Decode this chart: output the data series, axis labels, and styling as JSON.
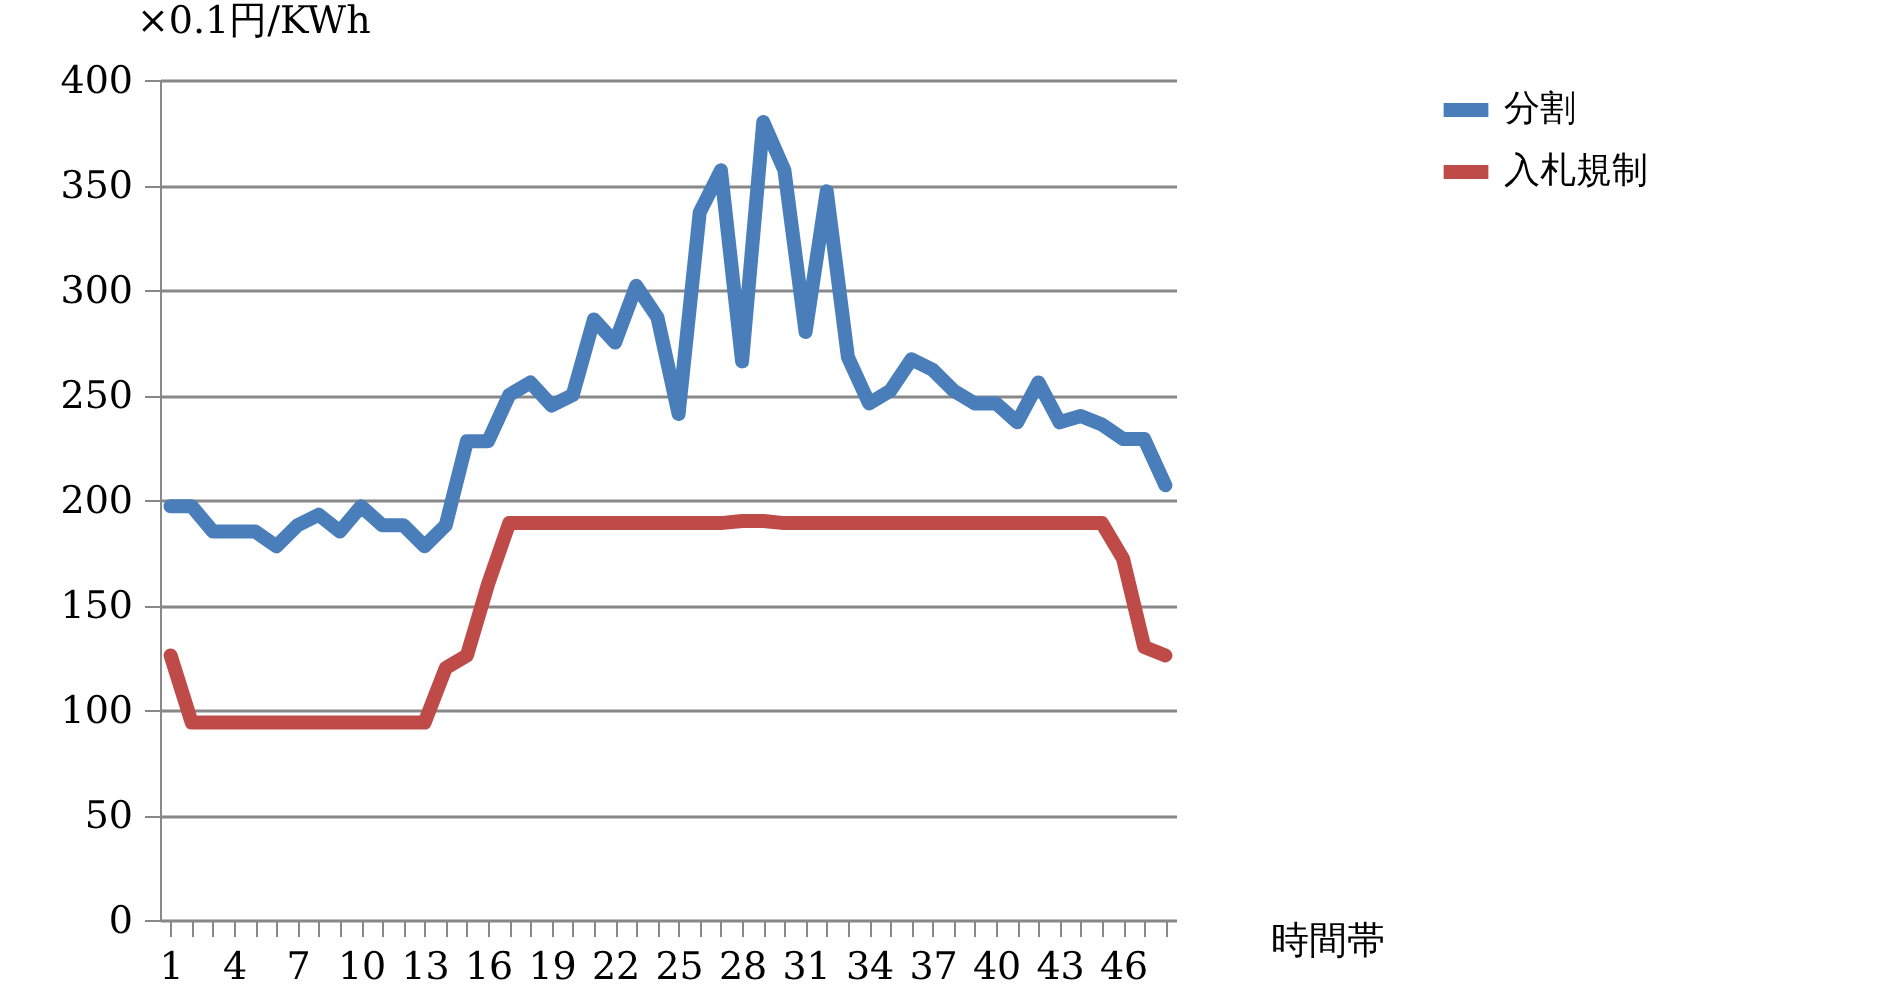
{
  "chart_data": {
    "type": "line",
    "ylabel": "×0.1円/KWh",
    "xlabel": "時間帯",
    "categories": [
      "1",
      null,
      null,
      "4",
      null,
      null,
      "7",
      null,
      null,
      "10",
      null,
      null,
      "13",
      null,
      null,
      "16",
      null,
      null,
      "19",
      null,
      null,
      "22",
      null,
      null,
      "25",
      null,
      null,
      "28",
      null,
      null,
      "31",
      null,
      null,
      "34",
      null,
      null,
      "37",
      null,
      null,
      "40",
      null,
      null,
      "43",
      null,
      null,
      "46",
      null,
      null
    ],
    "series": [
      {
        "name": "分割",
        "color": "#4a7ebb",
        "values": [
          197,
          197,
          185,
          185,
          185,
          178,
          188,
          193,
          185,
          197,
          188,
          188,
          178,
          188,
          228,
          228,
          250,
          256,
          245,
          250,
          286,
          275,
          302,
          287,
          241,
          337,
          357,
          266,
          380,
          357,
          280,
          347,
          268,
          246,
          252,
          267,
          262,
          252,
          246,
          246,
          237,
          256,
          237,
          240,
          236,
          229,
          229,
          207
        ]
      },
      {
        "name": "入札規制",
        "color": "#be4b48",
        "values": [
          126,
          94,
          94,
          94,
          94,
          94,
          94,
          94,
          94,
          94,
          94,
          94,
          94,
          120,
          126,
          160,
          189,
          189,
          189,
          189,
          189,
          189,
          189,
          189,
          189,
          189,
          189,
          190,
          190,
          189,
          189,
          189,
          189,
          189,
          189,
          189,
          189,
          189,
          189,
          189,
          189,
          189,
          189,
          189,
          189,
          172,
          130,
          126
        ]
      }
    ],
    "ylim": [
      0,
      400
    ],
    "yticks": [
      0,
      50,
      100,
      150,
      200,
      250,
      300,
      350,
      400
    ],
    "grid": "y",
    "legend": "right",
    "line_style": "solid"
  }
}
